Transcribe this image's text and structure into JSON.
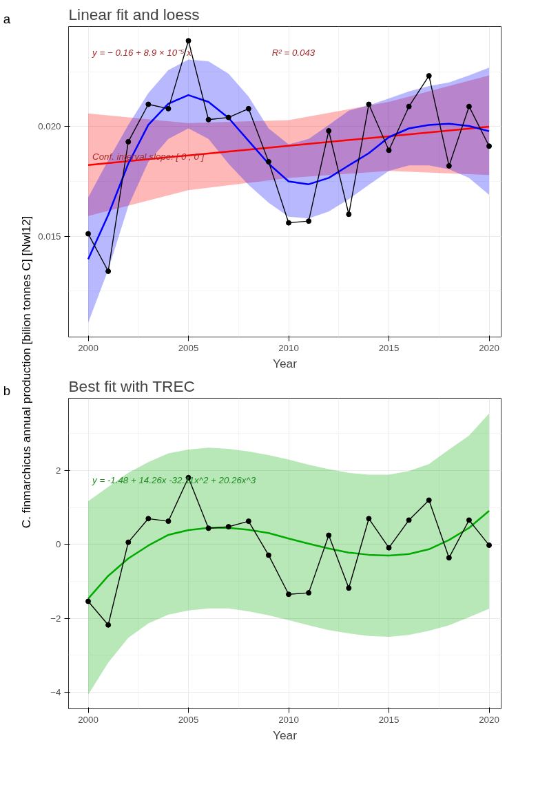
{
  "chart_data": [
    {
      "type": "line",
      "title": "Linear fit and loess",
      "xlabel": "Year",
      "ylabel": "C. finmarchicus annual production [bilion tonnes C] [Nwl12]",
      "annotations": [
        "a",
        "y = − 0.16 + 8.9 × 10⁻⁵ x",
        "R² = 0.043",
        "Conf. interval slope:  [ 0 ; 0 ]"
      ],
      "x": [
        2000,
        2001,
        2002,
        2003,
        2004,
        2005,
        2006,
        2007,
        2008,
        2009,
        2010,
        2011,
        2012,
        2013,
        2014,
        2015,
        2016,
        2017,
        2018,
        2019,
        2020
      ],
      "series": [
        {
          "color": "#ff0000",
          "x": [
            2000,
            2005,
            2010,
            2015,
            2020
          ],
          "values": [
            0.01825,
            0.01869,
            0.01913,
            0.01956,
            0.02
          ],
          "lower": [
            0.01592,
            0.0171,
            0.01766,
            0.01798,
            0.01779
          ],
          "upper": [
            0.0206,
            0.02016,
            0.0203,
            0.02113,
            0.02234
          ]
        },
        {
          "color": "#0000ff",
          "values": [
            0.01395,
            0.01597,
            0.01831,
            0.02008,
            0.02105,
            0.02144,
            0.02113,
            0.0204,
            0.01935,
            0.01831,
            0.0175,
            0.01737,
            0.01766,
            0.01823,
            0.01879,
            0.01952,
            0.01992,
            0.02008,
            0.02013,
            0.02003,
            0.01979
          ],
          "lower": [
            0.01105,
            0.01347,
            0.01637,
            0.01839,
            0.01944,
            0.01992,
            0.01944,
            0.01831,
            0.01734,
            0.01653,
            0.01589,
            0.01581,
            0.01613,
            0.01669,
            0.01734,
            0.01798,
            0.01823,
            0.01823,
            0.01806,
            0.01766,
            0.01689
          ],
          "upper": [
            0.01677,
            0.01847,
            0.02008,
            0.02153,
            0.02258,
            0.02306,
            0.02298,
            0.02242,
            0.02137,
            0.01992,
            0.01919,
            0.01944,
            0.02008,
            0.02073,
            0.02097,
            0.02129,
            0.02161,
            0.02185,
            0.02202,
            0.02234,
            0.02269
          ]
        },
        {
          "color": "#000000",
          "marker": "circle",
          "values": [
            0.01511,
            0.0134,
            0.01931,
            0.02102,
            0.02082,
            0.02392,
            0.02032,
            0.02042,
            0.02082,
            0.0184,
            0.01561,
            0.01569,
            0.01981,
            0.016,
            0.02102,
            0.01892,
            0.02092,
            0.02232,
            0.01821,
            0.02092,
            0.01911
          ]
        }
      ],
      "xlim": [
        1999.02,
        2020.6
      ],
      "ylim": [
        0.0104,
        0.02457
      ],
      "xticks": [
        2000,
        2005,
        2010,
        2015,
        2020
      ],
      "yticks": [
        {
          "value": 0.015,
          "label": "0.015"
        },
        {
          "value": 0.02,
          "label": "0.020"
        }
      ],
      "grid": true
    },
    {
      "type": "line",
      "title": "Best fit with TREC",
      "xlabel": "Year",
      "annotations": [
        "b",
        "y =  -1.48  + 14.26x  -32.11x^2  + 20.26x^3"
      ],
      "x": [
        2000,
        2001,
        2002,
        2003,
        2004,
        2005,
        2006,
        2007,
        2008,
        2009,
        2010,
        2011,
        2012,
        2013,
        2014,
        2015,
        2016,
        2017,
        2018,
        2019,
        2020
      ],
      "series": [
        {
          "color": "#00aa00",
          "values": [
            -1.47,
            -0.85,
            -0.38,
            -0.03,
            0.26,
            0.39,
            0.45,
            0.45,
            0.4,
            0.31,
            0.16,
            0.02,
            -0.11,
            -0.22,
            -0.28,
            -0.3,
            -0.26,
            -0.13,
            0.12,
            0.45,
            0.91
          ],
          "lower": [
            -4.07,
            -3.2,
            -2.53,
            -2.14,
            -1.9,
            -1.79,
            -1.73,
            -1.73,
            -1.81,
            -1.92,
            -2.05,
            -2.19,
            -2.32,
            -2.41,
            -2.48,
            -2.5,
            -2.45,
            -2.34,
            -2.19,
            -1.97,
            -1.74
          ],
          "upper": [
            1.17,
            1.56,
            1.94,
            2.23,
            2.47,
            2.57,
            2.62,
            2.59,
            2.52,
            2.42,
            2.3,
            2.16,
            2.04,
            1.94,
            1.89,
            1.89,
            1.99,
            2.18,
            2.57,
            2.95,
            3.55
          ]
        },
        {
          "color": "#000000",
          "marker": "circle",
          "values": [
            -1.54,
            -2.18,
            0.06,
            0.7,
            0.63,
            1.81,
            0.44,
            0.48,
            0.63,
            -0.29,
            -1.35,
            -1.31,
            0.25,
            -1.18,
            0.7,
            -0.09,
            0.66,
            1.2,
            -0.36,
            0.66,
            -0.02
          ]
        }
      ],
      "xlim": [
        1999.02,
        2020.6
      ],
      "ylim": [
        -4.45,
        3.96
      ],
      "xticks": [
        2000,
        2005,
        2010,
        2015,
        2020
      ],
      "yticks": [
        -4,
        -2,
        0,
        2
      ],
      "grid": true
    }
  ]
}
